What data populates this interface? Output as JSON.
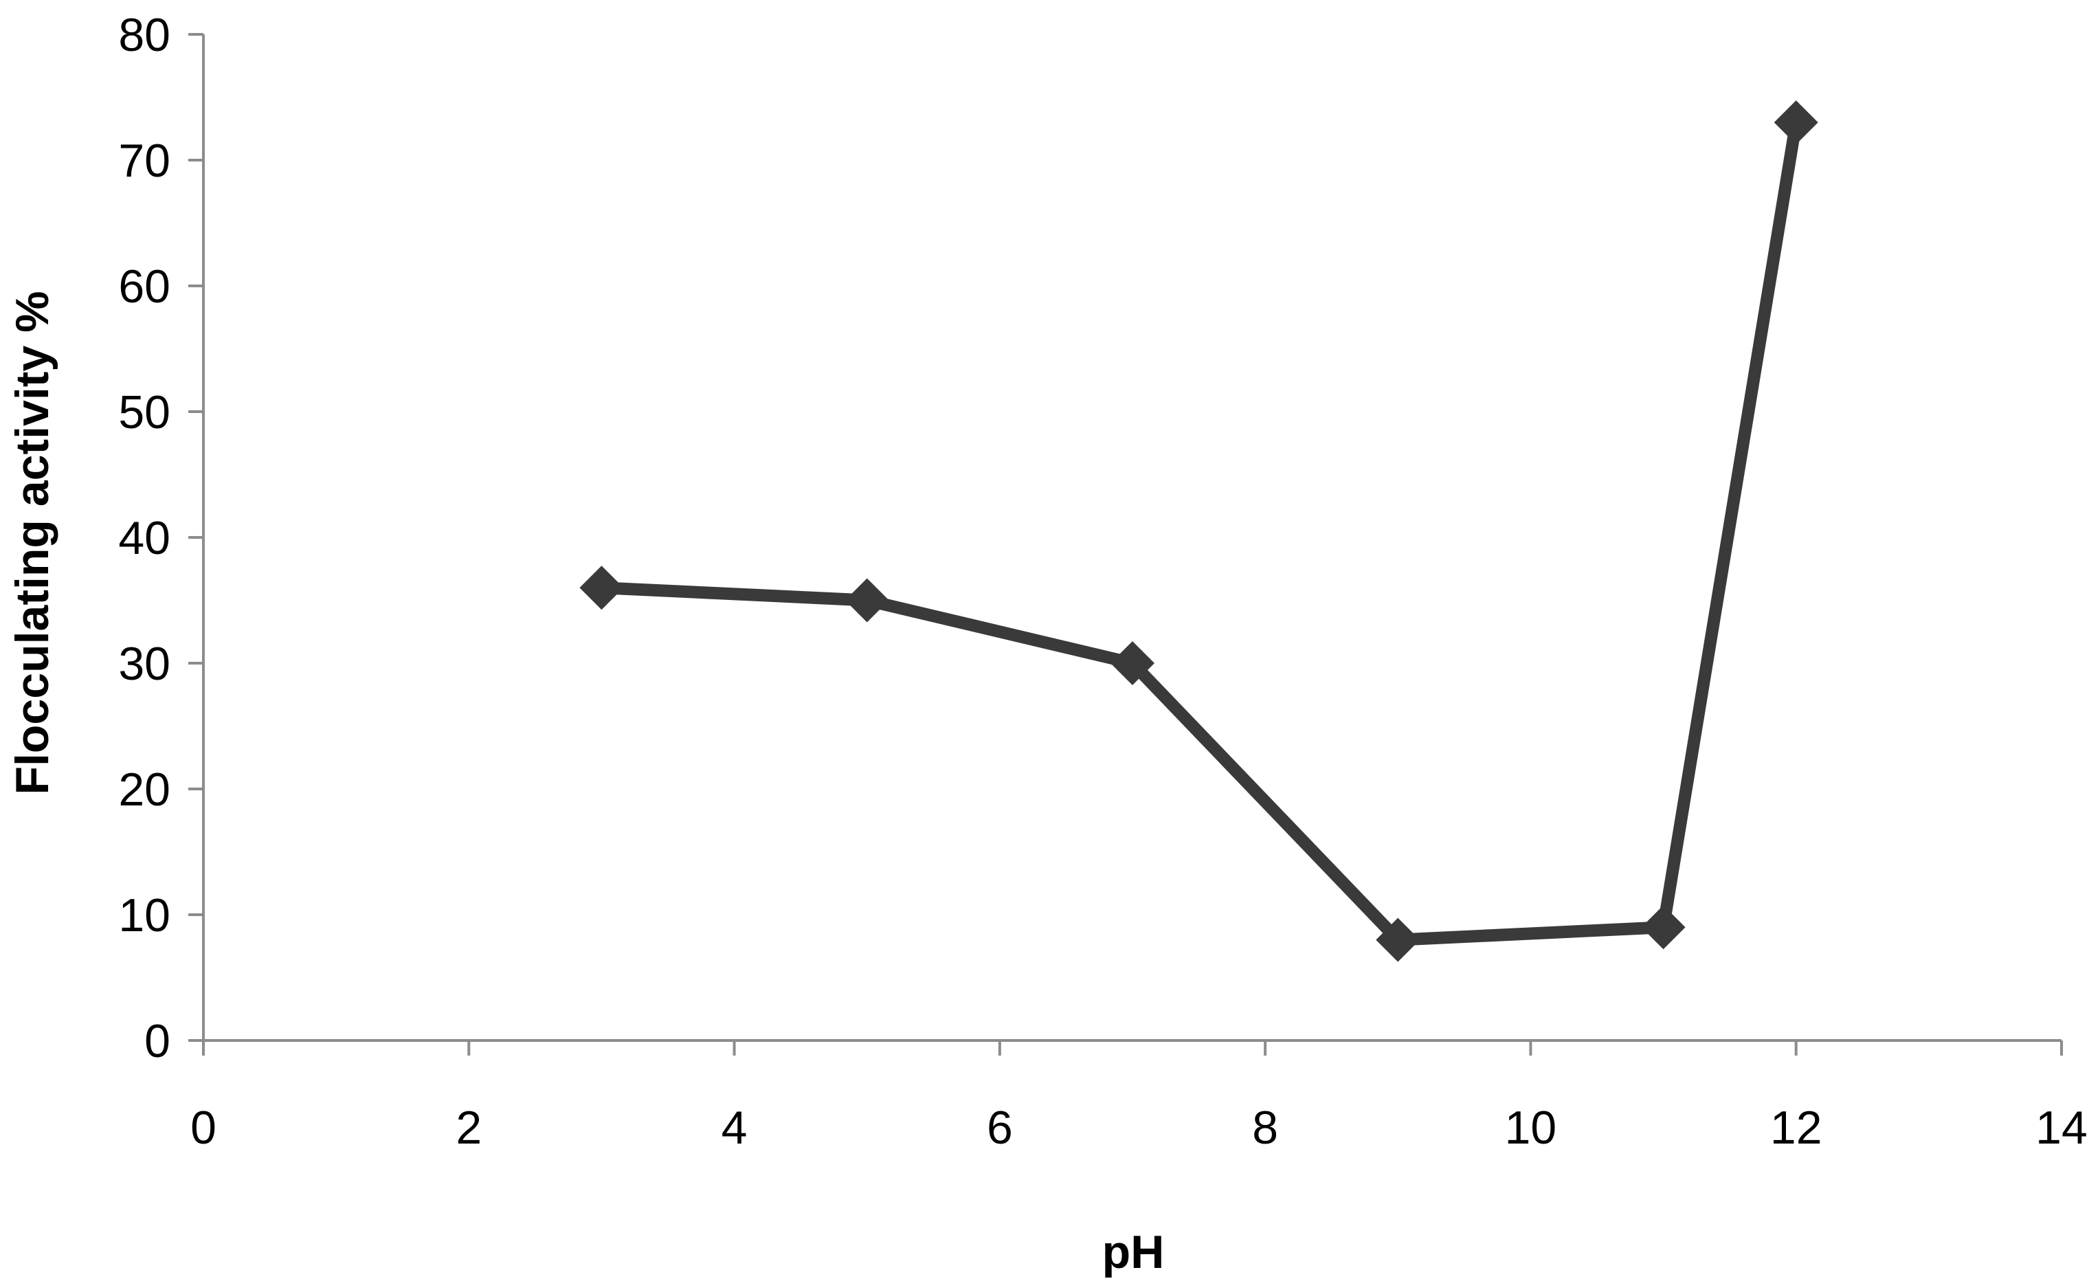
{
  "chart_data": {
    "type": "scatter",
    "title": "",
    "xlabel": "pH",
    "ylabel": "Flocculating activity %",
    "xlim": [
      0,
      14
    ],
    "ylim": [
      0,
      80
    ],
    "x_ticks": [
      "0",
      "2",
      "4",
      "6",
      "8",
      "10",
      "12",
      "14"
    ],
    "y_ticks": [
      "0",
      "10",
      "20",
      "30",
      "40",
      "50",
      "60",
      "70",
      "80"
    ],
    "grid": false,
    "legend": "none",
    "marker": "diamond",
    "line_color": "#3a3a3a",
    "axis_color": "#8c8c8c",
    "series": [
      {
        "x": [
          3,
          5,
          7,
          9,
          11,
          12
        ],
        "y": [
          36,
          35,
          30,
          8,
          9,
          73
        ]
      }
    ]
  }
}
